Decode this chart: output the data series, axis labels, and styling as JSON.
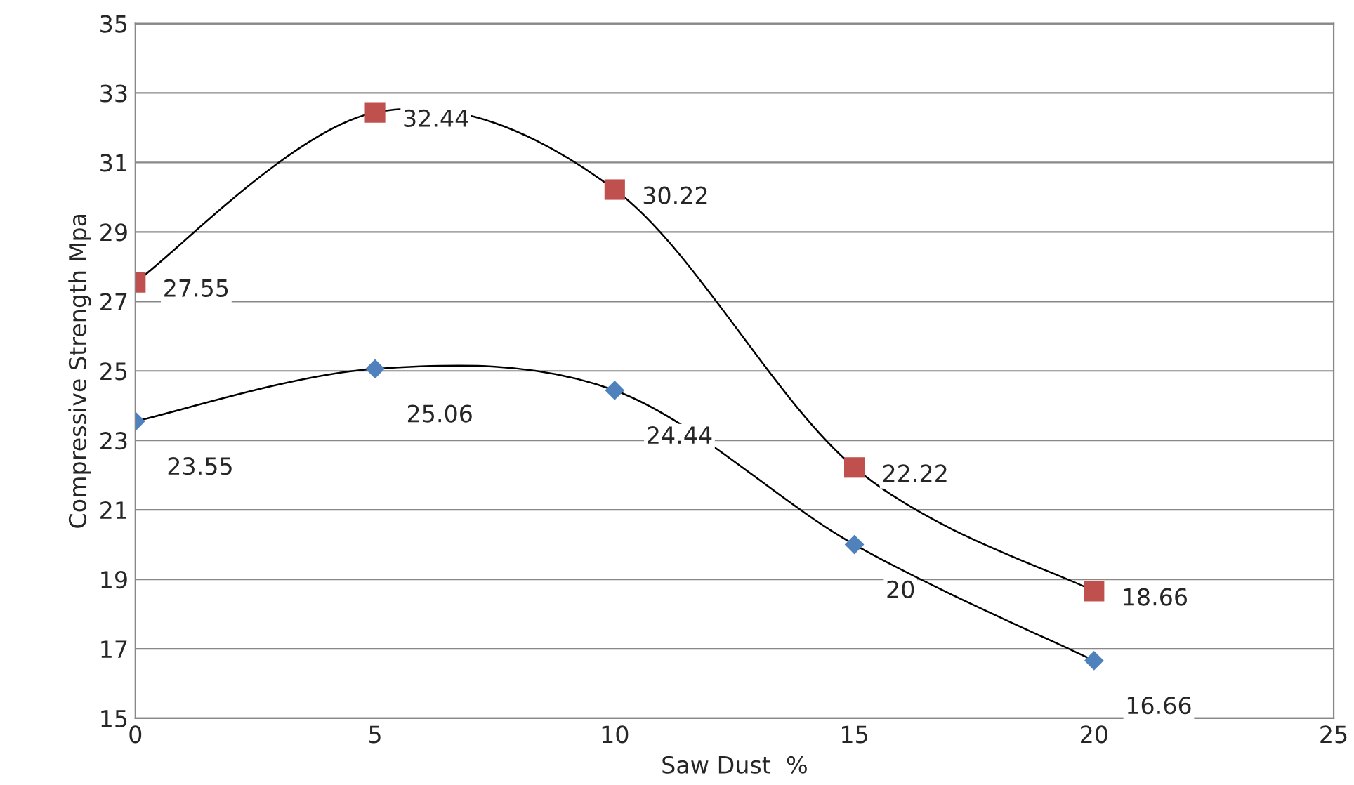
{
  "chart_data": {
    "type": "line",
    "xlabel": "Saw Dust  %",
    "ylabel": "Compressive Strength Mpa",
    "x": [
      0,
      5,
      10,
      15,
      20
    ],
    "series": [
      {
        "color": "#000000",
        "colors": [
          "#c0504d",
          "#c0504d",
          "#c0504d",
          "#c0504d",
          "#c0504d"
        ],
        "marker": "square",
        "values": [
          27.55,
          32.44,
          30.22,
          22.22,
          18.66
        ]
      },
      {
        "color": "#000000",
        "colors": [
          "#4f81bd",
          "#4f81bd",
          "#4f81bd",
          "#4f81bd",
          "#4f81bd"
        ],
        "marker": "diamond",
        "values": [
          23.55,
          25.06,
          24.44,
          20,
          16.66
        ]
      }
    ],
    "xlim": [
      0,
      25
    ],
    "xticks": [
      0,
      5,
      10,
      15,
      20,
      25
    ],
    "ylim": [
      15,
      35
    ],
    "yticks": [
      15,
      17,
      19,
      21,
      23,
      25,
      27,
      29,
      31,
      33,
      35
    ],
    "grid": "y",
    "data_labels": true,
    "legend": false
  }
}
